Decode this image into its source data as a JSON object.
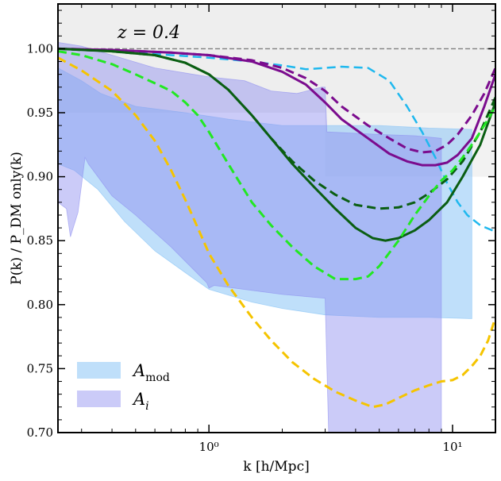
{
  "chart_data": {
    "type": "line",
    "title": "",
    "annotation": "z = 0.4",
    "xlabel": "k  [h/Mpc]",
    "ylabel": "P(k) / P_DM only(k)",
    "xscale": "log",
    "xlim": [
      0.24,
      15
    ],
    "ylim": [
      0.7,
      1.035
    ],
    "grid": false,
    "legend_position": "lower-left",
    "x_ticks": [
      {
        "value": 1,
        "label": "10⁰"
      },
      {
        "value": 10,
        "label": "10¹"
      }
    ],
    "y_ticks": [
      {
        "value": 0.7,
        "label": "0.70"
      },
      {
        "value": 0.75,
        "label": "0.75"
      },
      {
        "value": 0.8,
        "label": "0.80"
      },
      {
        "value": 0.85,
        "label": "0.85"
      },
      {
        "value": 0.9,
        "label": "0.90"
      },
      {
        "value": 0.95,
        "label": "0.95"
      },
      {
        "value": 1.0,
        "label": "1.00"
      }
    ],
    "reference_line": {
      "y": 1.0,
      "color": "#808080",
      "style": "dashed"
    },
    "shaded_regions": [
      {
        "name": "top-gray",
        "color": "#d9d9d9",
        "opacity": 0.45,
        "x": [
          0.24,
          15,
          15,
          0.24
        ],
        "y": [
          1.035,
          1.035,
          0.95,
          0.95
        ]
      },
      {
        "name": "right-gray",
        "color": "#d9d9d9",
        "opacity": 0.35,
        "x": [
          3.0,
          15,
          15,
          3.0
        ],
        "y": [
          0.95,
          0.95,
          0.9,
          0.9
        ]
      }
    ],
    "bands": [
      {
        "name": "A_mod",
        "legend": "A",
        "legend_sub": "mod",
        "color": "#7fbff5",
        "opacity": 0.5,
        "upper": [
          [
            0.24,
            0.985
          ],
          [
            0.3,
            0.975
          ],
          [
            0.36,
            0.965
          ],
          [
            0.5,
            0.955
          ],
          [
            0.8,
            0.95
          ],
          [
            1.2,
            0.945
          ],
          [
            2.0,
            0.94
          ],
          [
            3.0,
            0.94
          ],
          [
            5.0,
            0.94
          ],
          [
            8.0,
            0.938
          ],
          [
            12.0,
            0.937
          ]
        ],
        "lower": [
          [
            12.0,
            0.789
          ],
          [
            8.0,
            0.79
          ],
          [
            5.0,
            0.79
          ],
          [
            3.0,
            0.792
          ],
          [
            2.0,
            0.797
          ],
          [
            1.5,
            0.802
          ],
          [
            1.0,
            0.812
          ],
          [
            0.8,
            0.825
          ],
          [
            0.6,
            0.842
          ],
          [
            0.45,
            0.865
          ],
          [
            0.35,
            0.89
          ],
          [
            0.28,
            0.905
          ],
          [
            0.24,
            0.91
          ]
        ]
      },
      {
        "name": "A_i",
        "legend": "A",
        "legend_sub": "i",
        "color": "#8c8cf0",
        "opacity": 0.45,
        "upper": [
          [
            0.24,
            1.005
          ],
          [
            0.3,
            1.002
          ],
          [
            0.4,
            0.995
          ],
          [
            0.6,
            0.985
          ],
          [
            1.0,
            0.978
          ],
          [
            1.4,
            0.975
          ],
          [
            1.8,
            0.967
          ],
          [
            2.3,
            0.965
          ],
          [
            2.9,
            0.97
          ],
          [
            3.0,
            0.97
          ],
          [
            3.05,
            0.935
          ],
          [
            5.0,
            0.933
          ],
          [
            7.0,
            0.932
          ],
          [
            9.0,
            0.93
          ]
        ],
        "lower": [
          [
            9.0,
            0.7
          ],
          [
            3.1,
            0.7
          ],
          [
            3.0,
            0.805
          ],
          [
            2.0,
            0.808
          ],
          [
            1.05,
            0.815
          ],
          [
            1.0,
            0.813
          ],
          [
            0.98,
            0.817
          ],
          [
            0.7,
            0.845
          ],
          [
            0.5,
            0.87
          ],
          [
            0.4,
            0.885
          ],
          [
            0.32,
            0.91
          ],
          [
            0.31,
            0.915
          ],
          [
            0.29,
            0.872
          ],
          [
            0.27,
            0.853
          ],
          [
            0.26,
            0.875
          ],
          [
            0.24,
            0.88
          ]
        ]
      }
    ],
    "series": [
      {
        "name": "cyan-dashed",
        "color": "#1fb8ee",
        "dash": true,
        "width": 2.5,
        "points": [
          [
            0.24,
            1.0
          ],
          [
            0.4,
            0.998
          ],
          [
            0.7,
            0.995
          ],
          [
            1.0,
            0.993
          ],
          [
            1.5,
            0.99
          ],
          [
            2.0,
            0.987
          ],
          [
            2.5,
            0.984
          ],
          [
            3.0,
            0.985
          ],
          [
            3.5,
            0.986
          ],
          [
            4.5,
            0.985
          ],
          [
            5.5,
            0.975
          ],
          [
            6.5,
            0.955
          ],
          [
            7.5,
            0.935
          ],
          [
            8.5,
            0.915
          ],
          [
            9.5,
            0.895
          ],
          [
            10.5,
            0.88
          ],
          [
            11.5,
            0.87
          ],
          [
            13.0,
            0.862
          ],
          [
            15.0,
            0.857
          ]
        ]
      },
      {
        "name": "purple-solid",
        "color": "#7b0c8e",
        "dash": false,
        "width": 3,
        "points": [
          [
            0.24,
            1.0
          ],
          [
            0.4,
            0.999
          ],
          [
            0.7,
            0.997
          ],
          [
            1.0,
            0.995
          ],
          [
            1.5,
            0.99
          ],
          [
            2.0,
            0.982
          ],
          [
            2.5,
            0.972
          ],
          [
            3.0,
            0.958
          ],
          [
            3.5,
            0.945
          ],
          [
            4.5,
            0.93
          ],
          [
            5.5,
            0.918
          ],
          [
            6.5,
            0.912
          ],
          [
            7.5,
            0.909
          ],
          [
            8.5,
            0.909
          ],
          [
            9.5,
            0.911
          ],
          [
            10.5,
            0.917
          ],
          [
            12.0,
            0.93
          ],
          [
            13.5,
            0.955
          ],
          [
            15.0,
            0.98
          ]
        ]
      },
      {
        "name": "purple-dashed",
        "color": "#7b0c8e",
        "dash": true,
        "width": 3,
        "points": [
          [
            0.24,
            1.0
          ],
          [
            0.4,
            0.999
          ],
          [
            0.7,
            0.997
          ],
          [
            1.0,
            0.995
          ],
          [
            1.5,
            0.991
          ],
          [
            2.0,
            0.985
          ],
          [
            2.5,
            0.977
          ],
          [
            3.0,
            0.967
          ],
          [
            3.5,
            0.955
          ],
          [
            4.5,
            0.94
          ],
          [
            5.5,
            0.93
          ],
          [
            6.5,
            0.922
          ],
          [
            7.5,
            0.919
          ],
          [
            8.5,
            0.92
          ],
          [
            9.5,
            0.925
          ],
          [
            10.5,
            0.933
          ],
          [
            12.0,
            0.948
          ],
          [
            13.5,
            0.965
          ],
          [
            15.0,
            0.985
          ]
        ]
      },
      {
        "name": "darkgreen-solid",
        "color": "#0a5e12",
        "dash": false,
        "width": 3,
        "points": [
          [
            0.24,
            1.0
          ],
          [
            0.4,
            0.998
          ],
          [
            0.6,
            0.995
          ],
          [
            0.8,
            0.989
          ],
          [
            1.0,
            0.98
          ],
          [
            1.2,
            0.968
          ],
          [
            1.5,
            0.948
          ],
          [
            1.8,
            0.93
          ],
          [
            2.2,
            0.91
          ],
          [
            2.7,
            0.892
          ],
          [
            3.3,
            0.875
          ],
          [
            4.0,
            0.86
          ],
          [
            4.7,
            0.852
          ],
          [
            5.3,
            0.85
          ],
          [
            6.0,
            0.852
          ],
          [
            7.0,
            0.858
          ],
          [
            8.0,
            0.866
          ],
          [
            9.5,
            0.88
          ],
          [
            11.0,
            0.9
          ],
          [
            13.0,
            0.925
          ],
          [
            15.0,
            0.958
          ]
        ]
      },
      {
        "name": "darkgreen-dashed",
        "color": "#0a5e12",
        "dash": true,
        "width": 3,
        "points": [
          [
            0.24,
            1.0
          ],
          [
            0.4,
            0.998
          ],
          [
            0.6,
            0.995
          ],
          [
            0.8,
            0.989
          ],
          [
            1.0,
            0.98
          ],
          [
            1.2,
            0.968
          ],
          [
            1.5,
            0.948
          ],
          [
            1.8,
            0.93
          ],
          [
            2.2,
            0.912
          ],
          [
            2.7,
            0.897
          ],
          [
            3.3,
            0.886
          ],
          [
            4.0,
            0.878
          ],
          [
            5.0,
            0.875
          ],
          [
            6.0,
            0.876
          ],
          [
            7.0,
            0.88
          ],
          [
            8.0,
            0.887
          ],
          [
            9.5,
            0.898
          ],
          [
            11.0,
            0.912
          ],
          [
            13.0,
            0.935
          ],
          [
            15.0,
            0.962
          ]
        ]
      },
      {
        "name": "lightgreen-dashed",
        "color": "#22e822",
        "dash": true,
        "width": 3,
        "points": [
          [
            0.24,
            0.998
          ],
          [
            0.3,
            0.995
          ],
          [
            0.4,
            0.988
          ],
          [
            0.5,
            0.98
          ],
          [
            0.6,
            0.973
          ],
          [
            0.7,
            0.967
          ],
          [
            0.8,
            0.958
          ],
          [
            0.9,
            0.948
          ],
          [
            1.0,
            0.935
          ],
          [
            1.2,
            0.91
          ],
          [
            1.5,
            0.88
          ],
          [
            1.8,
            0.862
          ],
          [
            2.2,
            0.845
          ],
          [
            2.7,
            0.83
          ],
          [
            3.3,
            0.82
          ],
          [
            4.0,
            0.82
          ],
          [
            4.5,
            0.822
          ],
          [
            5.0,
            0.83
          ],
          [
            6.0,
            0.85
          ],
          [
            7.0,
            0.87
          ],
          [
            8.0,
            0.885
          ],
          [
            9.0,
            0.897
          ],
          [
            10.0,
            0.905
          ],
          [
            11.0,
            0.915
          ],
          [
            12.0,
            0.925
          ],
          [
            13.0,
            0.935
          ],
          [
            14.0,
            0.945
          ],
          [
            15.0,
            0.955
          ]
        ]
      },
      {
        "name": "yellow-dashed",
        "color": "#f5c400",
        "dash": true,
        "width": 3,
        "points": [
          [
            0.24,
            0.993
          ],
          [
            0.3,
            0.983
          ],
          [
            0.4,
            0.967
          ],
          [
            0.5,
            0.948
          ],
          [
            0.6,
            0.928
          ],
          [
            0.7,
            0.905
          ],
          [
            0.8,
            0.882
          ],
          [
            0.9,
            0.86
          ],
          [
            1.0,
            0.84
          ],
          [
            1.2,
            0.815
          ],
          [
            1.5,
            0.79
          ],
          [
            1.8,
            0.772
          ],
          [
            2.2,
            0.755
          ],
          [
            2.7,
            0.742
          ],
          [
            3.3,
            0.732
          ],
          [
            4.0,
            0.725
          ],
          [
            4.7,
            0.72
          ],
          [
            5.3,
            0.722
          ],
          [
            6.0,
            0.727
          ],
          [
            7.0,
            0.733
          ],
          [
            8.0,
            0.737
          ],
          [
            9.0,
            0.74
          ],
          [
            10.0,
            0.741
          ],
          [
            11.0,
            0.745
          ],
          [
            12.0,
            0.752
          ],
          [
            13.0,
            0.76
          ],
          [
            14.0,
            0.772
          ],
          [
            15.0,
            0.79
          ]
        ]
      }
    ]
  }
}
